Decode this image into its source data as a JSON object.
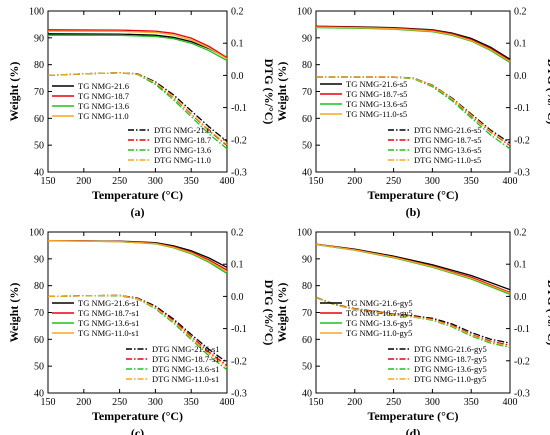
{
  "chart_data": [
    {
      "type": "line",
      "panel_label": "(a)",
      "xlabel": "Temperature (°C)",
      "ylabel": "Weight (%)",
      "ylabel_right": "DTG (%/°C)",
      "xlim": [
        150,
        400
      ],
      "ylim": [
        40,
        100
      ],
      "ylim_right": [
        -0.3,
        0.2
      ],
      "x_ticks": [
        "150",
        "200",
        "250",
        "300",
        "350",
        "400"
      ],
      "y_ticks": [
        "40",
        "50",
        "60",
        "70",
        "80",
        "90",
        "100"
      ],
      "y_right_ticks": [
        "-0.3",
        "-0.2",
        "-0.1",
        "0.0",
        "0.1",
        "0.2"
      ],
      "legend_tg": [
        "TG NMG-21.6",
        "TG NMG-18.7",
        "TG NMG-13.6",
        "TG NMG-11.0"
      ],
      "legend_dtg": [
        "DTG NMG-21.6",
        "DTG NMG-18.7",
        "DTG NMG-13.6",
        "DTG NMG-11.0"
      ],
      "tg_series": [
        {
          "name": "TG NMG-21.6",
          "color": "#000000",
          "x": [
            150,
            250,
            300,
            325,
            350,
            375,
            400
          ],
          "y": [
            91.5,
            91.4,
            91.0,
            90.2,
            88.6,
            86.0,
            82.5
          ]
        },
        {
          "name": "TG NMG-18.7",
          "color": "#e8000b",
          "x": [
            150,
            250,
            300,
            325,
            350,
            375,
            400
          ],
          "y": [
            93.0,
            92.9,
            92.5,
            91.7,
            89.9,
            86.8,
            82.6
          ]
        },
        {
          "name": "TG NMG-13.6",
          "color": "#1ec01e",
          "x": [
            150,
            250,
            300,
            325,
            350,
            375,
            400
          ],
          "y": [
            91.0,
            90.9,
            90.5,
            89.7,
            88.0,
            85.2,
            81.5
          ]
        },
        {
          "name": "TG NMG-11.0",
          "color": "#f5a623",
          "x": [
            150,
            250,
            300,
            325,
            350,
            375,
            400
          ],
          "y": [
            92.5,
            92.4,
            92.0,
            91.1,
            89.2,
            86.2,
            82.2
          ]
        }
      ],
      "dtg_series": [
        {
          "name": "DTG NMG-21.6",
          "color": "#000000",
          "dash": "dashdot",
          "x": [
            150,
            200,
            250,
            275,
            300,
            325,
            350,
            375,
            400
          ],
          "y": [
            0.0,
            0.005,
            0.008,
            0.005,
            -0.02,
            -0.06,
            -0.11,
            -0.16,
            -0.205
          ]
        },
        {
          "name": "DTG NMG-18.7",
          "color": "#e8000b",
          "dash": "dashdot",
          "x": [
            150,
            200,
            250,
            275,
            300,
            325,
            350,
            375,
            400
          ],
          "y": [
            0.0,
            0.005,
            0.008,
            0.004,
            -0.025,
            -0.068,
            -0.12,
            -0.172,
            -0.218
          ]
        },
        {
          "name": "DTG NMG-13.6",
          "color": "#1ec01e",
          "dash": "dashdot",
          "x": [
            150,
            200,
            250,
            275,
            300,
            325,
            350,
            375,
            400
          ],
          "y": [
            0.0,
            0.005,
            0.008,
            0.003,
            -0.028,
            -0.075,
            -0.128,
            -0.182,
            -0.228
          ]
        },
        {
          "name": "DTG NMG-11.0",
          "color": "#f5a623",
          "dash": "dashdot",
          "x": [
            150,
            200,
            250,
            275,
            300,
            325,
            350,
            375,
            400
          ],
          "y": [
            0.0,
            0.005,
            0.008,
            0.004,
            -0.023,
            -0.066,
            -0.118,
            -0.17,
            -0.215
          ]
        }
      ]
    },
    {
      "type": "line",
      "panel_label": "(b)",
      "xlabel": "Temperature (°C)",
      "ylabel": "Weight (%)",
      "ylabel_right": "DTG (%/°C)",
      "xlim": [
        150,
        400
      ],
      "ylim": [
        40,
        100
      ],
      "ylim_right": [
        -0.3,
        0.2
      ],
      "x_ticks": [
        "150",
        "200",
        "250",
        "300",
        "350",
        "400"
      ],
      "y_ticks": [
        "40",
        "50",
        "60",
        "70",
        "80",
        "90",
        "100"
      ],
      "y_right_ticks": [
        "-0.3",
        "-0.2",
        "-0.1",
        "0.0",
        "0.1",
        "0.2"
      ],
      "legend_tg": [
        "TG NMG-21.6-s5",
        "TG NMG-18.7-s5",
        "TG NMG-13.6-s5",
        "TG NMG-11.0-s5"
      ],
      "legend_dtg": [
        "DTG NMG-21.6-s5",
        "DTG NMG-18.7-s5",
        "DTG NMG-13.6-s5",
        "DTG NMG-11.0-s5"
      ],
      "tg_series": [
        {
          "name": "TG NMG-21.6-s5",
          "color": "#000000",
          "x": [
            150,
            200,
            250,
            300,
            325,
            350,
            375,
            400
          ],
          "y": [
            94.3,
            94.1,
            93.8,
            93.0,
            91.8,
            89.8,
            86.5,
            82.0
          ]
        },
        {
          "name": "TG NMG-18.7-s5",
          "color": "#e8000b",
          "x": [
            150,
            200,
            250,
            300,
            325,
            350,
            375,
            400
          ],
          "y": [
            94.2,
            94.0,
            93.6,
            92.8,
            91.5,
            89.3,
            86.0,
            81.5
          ]
        },
        {
          "name": "TG NMG-13.6-s5",
          "color": "#1ec01e",
          "x": [
            150,
            200,
            250,
            300,
            325,
            350,
            375,
            400
          ],
          "y": [
            93.8,
            93.6,
            93.2,
            92.3,
            91.0,
            88.8,
            85.3,
            80.8
          ]
        },
        {
          "name": "TG NMG-11.0-s5",
          "color": "#f5a623",
          "x": [
            150,
            200,
            250,
            300,
            325,
            350,
            375,
            400
          ],
          "y": [
            94.0,
            93.8,
            93.4,
            92.5,
            91.2,
            89.0,
            85.6,
            81.2
          ]
        }
      ],
      "dtg_series": [
        {
          "name": "DTG NMG-21.6-s5",
          "color": "#000000",
          "dash": "dashdot",
          "x": [
            150,
            200,
            250,
            275,
            300,
            325,
            350,
            375,
            400
          ],
          "y": [
            -0.005,
            -0.005,
            -0.005,
            -0.008,
            -0.03,
            -0.07,
            -0.12,
            -0.17,
            -0.21
          ]
        },
        {
          "name": "DTG NMG-18.7-s5",
          "color": "#e8000b",
          "dash": "dashdot",
          "x": [
            150,
            200,
            250,
            275,
            300,
            325,
            350,
            375,
            400
          ],
          "y": [
            -0.005,
            -0.005,
            -0.005,
            -0.009,
            -0.032,
            -0.073,
            -0.125,
            -0.176,
            -0.218
          ]
        },
        {
          "name": "DTG NMG-13.6-s5",
          "color": "#1ec01e",
          "dash": "dashdot",
          "x": [
            150,
            200,
            250,
            275,
            300,
            325,
            350,
            375,
            400
          ],
          "y": [
            -0.005,
            -0.005,
            -0.006,
            -0.01,
            -0.035,
            -0.078,
            -0.132,
            -0.185,
            -0.228
          ]
        },
        {
          "name": "DTG NMG-11.0-s5",
          "color": "#f5a623",
          "dash": "dashdot",
          "x": [
            150,
            200,
            250,
            275,
            300,
            325,
            350,
            375,
            400
          ],
          "y": [
            -0.005,
            -0.005,
            -0.005,
            -0.009,
            -0.031,
            -0.072,
            -0.123,
            -0.174,
            -0.215
          ]
        }
      ]
    },
    {
      "type": "line",
      "panel_label": "(c)",
      "xlabel": "Temperature (°C)",
      "ylabel": "Weight (%)",
      "ylabel_right": "DTG (%/°C)",
      "xlim": [
        150,
        400
      ],
      "ylim": [
        40,
        100
      ],
      "ylim_right": [
        -0.3,
        0.2
      ],
      "x_ticks": [
        "150",
        "200",
        "250",
        "300",
        "350",
        "400"
      ],
      "y_ticks": [
        "40",
        "50",
        "60",
        "70",
        "80",
        "90",
        "100"
      ],
      "y_right_ticks": [
        "-0.3",
        "-0.2",
        "-0.1",
        "0.0",
        "0.1",
        "0.2"
      ],
      "legend_tg": [
        "TG NMG-21.6-s1",
        "TG NMG-18.7-s1",
        "TG NMG-13.6-s1",
        "TG NMG-11.0-s1"
      ],
      "legend_dtg": [
        "DTG NMG-21.6-s1",
        "DTG NMG-18.7-s1",
        "DTG NMG-13.6-s1",
        "DTG NMG-11.0-s1"
      ],
      "tg_series": [
        {
          "name": "TG NMG-21.6-s1",
          "color": "#000000",
          "x": [
            150,
            200,
            250,
            300,
            325,
            350,
            375,
            400
          ],
          "y": [
            96.8,
            96.7,
            96.6,
            96.0,
            94.9,
            93.0,
            90.3,
            86.8
          ]
        },
        {
          "name": "TG NMG-18.7-s1",
          "color": "#e8000b",
          "x": [
            150,
            200,
            250,
            300,
            325,
            350,
            375,
            400
          ],
          "y": [
            96.8,
            96.7,
            96.5,
            95.8,
            94.5,
            92.5,
            89.6,
            85.8
          ]
        },
        {
          "name": "TG NMG-13.6-s1",
          "color": "#1ec01e",
          "x": [
            150,
            200,
            250,
            300,
            325,
            350,
            375,
            400
          ],
          "y": [
            96.7,
            96.6,
            96.4,
            95.6,
            94.1,
            91.9,
            88.7,
            84.5
          ]
        },
        {
          "name": "TG NMG-11.0-s1",
          "color": "#f5a623",
          "x": [
            150,
            200,
            250,
            300,
            325,
            350,
            375,
            400
          ],
          "y": [
            96.8,
            96.6,
            96.4,
            95.7,
            94.3,
            92.2,
            89.1,
            85.2
          ]
        }
      ],
      "dtg_series": [
        {
          "name": "DTG NMG-21.6-s1",
          "color": "#000000",
          "dash": "dashdot",
          "x": [
            150,
            200,
            250,
            275,
            300,
            325,
            350,
            375,
            400
          ],
          "y": [
            0.0,
            0.002,
            0.003,
            -0.005,
            -0.03,
            -0.07,
            -0.118,
            -0.165,
            -0.205
          ]
        },
        {
          "name": "DTG NMG-18.7-s1",
          "color": "#e8000b",
          "dash": "dashdot",
          "x": [
            150,
            200,
            250,
            275,
            300,
            325,
            350,
            375,
            400
          ],
          "y": [
            0.0,
            0.002,
            0.003,
            -0.006,
            -0.033,
            -0.075,
            -0.125,
            -0.173,
            -0.215
          ]
        },
        {
          "name": "DTG NMG-13.6-s1",
          "color": "#1ec01e",
          "dash": "dashdot",
          "x": [
            150,
            200,
            250,
            275,
            300,
            325,
            350,
            375,
            400
          ],
          "y": [
            0.0,
            0.002,
            0.002,
            -0.008,
            -0.038,
            -0.082,
            -0.134,
            -0.185,
            -0.228
          ]
        },
        {
          "name": "DTG NMG-11.0-s1",
          "color": "#f5a623",
          "dash": "dashdot",
          "x": [
            150,
            200,
            250,
            275,
            300,
            325,
            350,
            375,
            400
          ],
          "y": [
            0.0,
            0.002,
            0.003,
            -0.007,
            -0.035,
            -0.078,
            -0.129,
            -0.178,
            -0.22
          ]
        }
      ]
    },
    {
      "type": "line",
      "panel_label": "(d)",
      "xlabel": "Temperature (°C)",
      "ylabel": "Weight (%)",
      "ylabel_right": "DTG (%/°C)",
      "xlim": [
        150,
        400
      ],
      "ylim": [
        40,
        100
      ],
      "ylim_right": [
        -0.3,
        0.2
      ],
      "x_ticks": [
        "150",
        "200",
        "250",
        "300",
        "350",
        "400"
      ],
      "y_ticks": [
        "40",
        "50",
        "60",
        "70",
        "80",
        "90",
        "100"
      ],
      "y_right_ticks": [
        "-0.3",
        "-0.2",
        "-0.1",
        "0.0",
        "0.1",
        "0.2"
      ],
      "legend_tg": [
        "TG NMG-21.6-gy5",
        "TG NMG-18.7-gy5",
        "TG NMG-13.6-gy5",
        "TG NMG-11.0-gy5"
      ],
      "legend_dtg": [
        "DTG NMG-21.6-gy5",
        "DTG NMG-18.7-gy5",
        "DTG NMG-13.6-gy5",
        "DTG NMG-11.0-gy5"
      ],
      "tg_series": [
        {
          "name": "TG NMG-21.6-gy5",
          "color": "#000000",
          "x": [
            150,
            200,
            250,
            300,
            350,
            400
          ],
          "y": [
            95.5,
            93.6,
            91.0,
            87.8,
            83.8,
            78.5
          ]
        },
        {
          "name": "TG NMG-18.7-gy5",
          "color": "#e8000b",
          "x": [
            150,
            200,
            250,
            300,
            350,
            400
          ],
          "y": [
            95.4,
            93.4,
            90.7,
            87.3,
            83.1,
            77.5
          ]
        },
        {
          "name": "TG NMG-13.6-gy5",
          "color": "#1ec01e",
          "x": [
            150,
            200,
            250,
            300,
            350,
            400
          ],
          "y": [
            95.3,
            93.2,
            90.4,
            86.9,
            82.5,
            76.8
          ]
        },
        {
          "name": "TG NMG-11.0-gy5",
          "color": "#f5a623",
          "x": [
            150,
            200,
            250,
            300,
            350,
            400
          ],
          "y": [
            95.4,
            93.3,
            90.6,
            87.1,
            82.8,
            77.2
          ]
        }
      ],
      "dtg_series": [
        {
          "name": "DTG NMG-21.6-gy5",
          "color": "#000000",
          "dash": "dashdot",
          "x": [
            150,
            175,
            200,
            250,
            275,
            300,
            325,
            350,
            375,
            400
          ],
          "y": [
            -0.003,
            -0.025,
            -0.038,
            -0.055,
            -0.06,
            -0.068,
            -0.085,
            -0.112,
            -0.133,
            -0.145
          ]
        },
        {
          "name": "DTG NMG-18.7-gy5",
          "color": "#e8000b",
          "dash": "dashdot",
          "x": [
            150,
            175,
            200,
            250,
            275,
            300,
            325,
            350,
            375,
            400
          ],
          "y": [
            -0.004,
            -0.026,
            -0.039,
            -0.056,
            -0.062,
            -0.071,
            -0.09,
            -0.118,
            -0.139,
            -0.152
          ]
        },
        {
          "name": "DTG NMG-13.6-gy5",
          "color": "#1ec01e",
          "dash": "dashdot",
          "x": [
            150,
            175,
            200,
            250,
            275,
            300,
            325,
            350,
            375,
            400
          ],
          "y": [
            -0.004,
            -0.027,
            -0.04,
            -0.058,
            -0.064,
            -0.074,
            -0.094,
            -0.123,
            -0.145,
            -0.158
          ]
        },
        {
          "name": "DTG NMG-11.0-gy5",
          "color": "#f5a623",
          "dash": "dashdot",
          "x": [
            150,
            175,
            200,
            250,
            275,
            300,
            325,
            350,
            375,
            400
          ],
          "y": [
            -0.004,
            -0.026,
            -0.039,
            -0.057,
            -0.063,
            -0.072,
            -0.092,
            -0.12,
            -0.142,
            -0.155
          ]
        }
      ]
    }
  ]
}
